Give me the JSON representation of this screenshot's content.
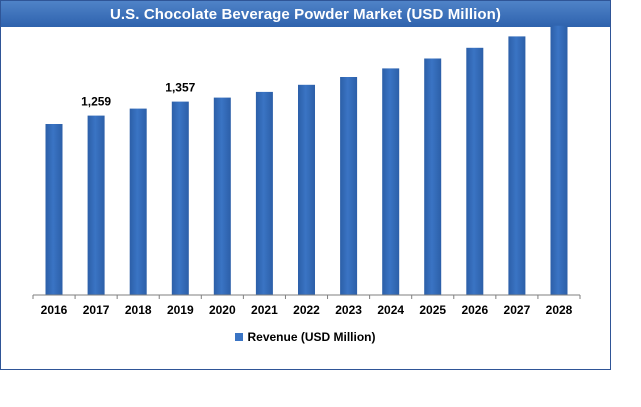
{
  "chart_data": {
    "type": "bar",
    "title": "U.S. Chocolate Beverage Powder Market (USD Million)",
    "categories": [
      "2016",
      "2017",
      "2018",
      "2019",
      "2020",
      "2021",
      "2022",
      "2023",
      "2024",
      "2025",
      "2026",
      "2027",
      "2028"
    ],
    "series": [
      {
        "name": "Revenue (USD Million)",
        "values": [
          1200,
          1259,
          1308,
          1357,
          1385,
          1425,
          1475,
          1530,
          1590,
          1660,
          1735,
          1815,
          1890
        ]
      }
    ],
    "data_labels": [
      {
        "category": "2017",
        "text": "1,259"
      },
      {
        "category": "2019",
        "text": "1,357"
      }
    ],
    "ylim": [
      0,
      2000
    ],
    "grid": false,
    "legend_position": "bottom",
    "bar_color": "#3a74c4",
    "axis_color": "#7f7f7f",
    "title_bar_color": "#2e62ad"
  }
}
